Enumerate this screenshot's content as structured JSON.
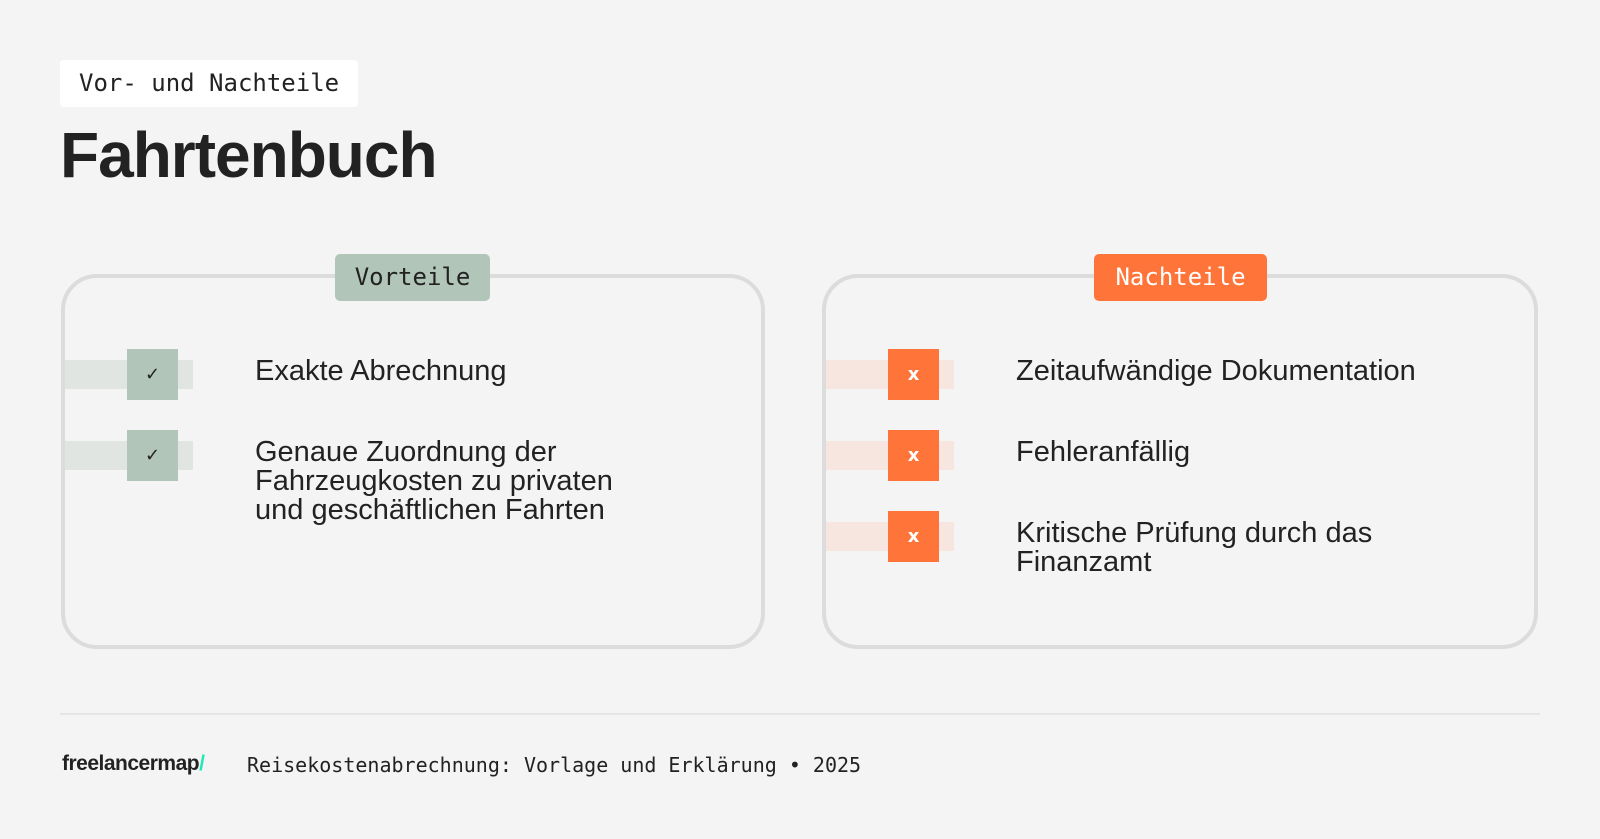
{
  "eyebrow": "Vor- und Nachteile",
  "title": "Fahrtenbuch",
  "pros": {
    "label": "Vorteile",
    "icon": "check-icon",
    "color": "#b2c5b9",
    "items": [
      {
        "mark": "✓",
        "text": "Exakte Abrechnung"
      },
      {
        "mark": "✓",
        "text": "Genaue Zuordnung der Fahrzeugkosten zu privaten und geschäftlichen Fahrten"
      }
    ]
  },
  "cons": {
    "label": "Nachteile",
    "icon": "x-icon",
    "color": "#ff7438",
    "items": [
      {
        "mark": "x",
        "text": "Zeitaufwändige Dokumentation"
      },
      {
        "mark": "x",
        "text": "Fehleranfällig"
      },
      {
        "mark": "x",
        "text": "Kritische Prüfung durch das Finanzamt"
      }
    ]
  },
  "footer": {
    "logo": "freelancermap",
    "logo_slash": "/",
    "text": "Reisekostenabrechnung: Vorlage und Erklärung • 2025"
  }
}
